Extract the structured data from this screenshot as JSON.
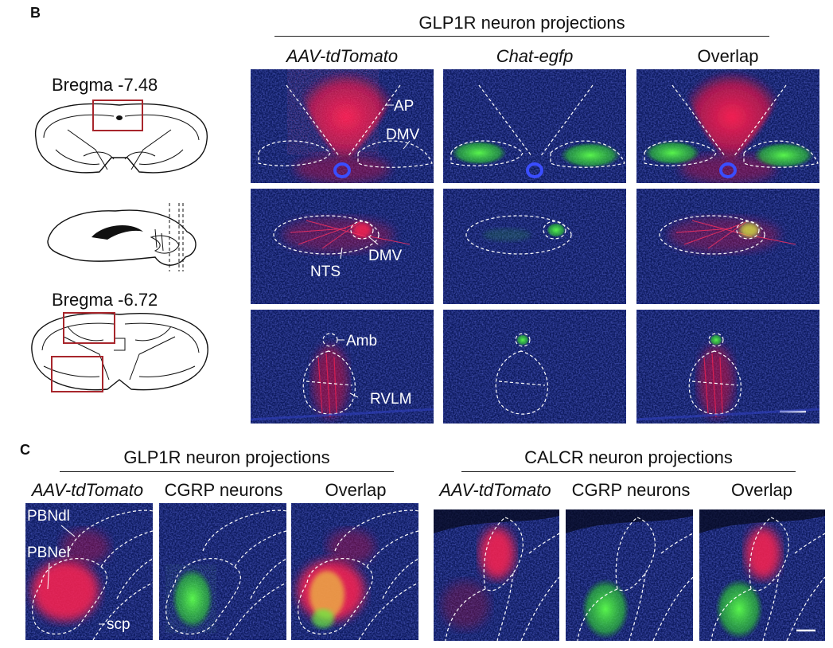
{
  "panel_b": {
    "letter": "B",
    "header": "GLP1R neuron projections",
    "columns": [
      "AAV-tdTomato",
      "Chat-egfp",
      "Overlap"
    ],
    "bregma_top": "Bregma -7.48",
    "bregma_bottom": "Bregma -6.72",
    "labels": {
      "ap": "AP",
      "dmv": "DMV",
      "nts": "NTS",
      "dmv2": "DMV",
      "amb": "Amb",
      "rvlm": "RVLM"
    }
  },
  "panel_c": {
    "letter": "C",
    "left_header": "GLP1R neuron projections",
    "right_header": "CALCR neuron projections",
    "left_columns": [
      "AAV-tdTomato",
      "CGRP neurons",
      "Overlap"
    ],
    "right_columns": [
      "AAV-tdTomato",
      "CGRP neurons",
      "Overlap"
    ],
    "labels": {
      "pbndl": "PBNdl",
      "pbnel": "PBNel",
      "scp": "scp"
    }
  },
  "colors": {
    "background_blue": "#0d1a5e",
    "tdtomato_red": "#ff2050",
    "egfp_green": "#3cff3c",
    "roi_box": "#a8262c"
  }
}
